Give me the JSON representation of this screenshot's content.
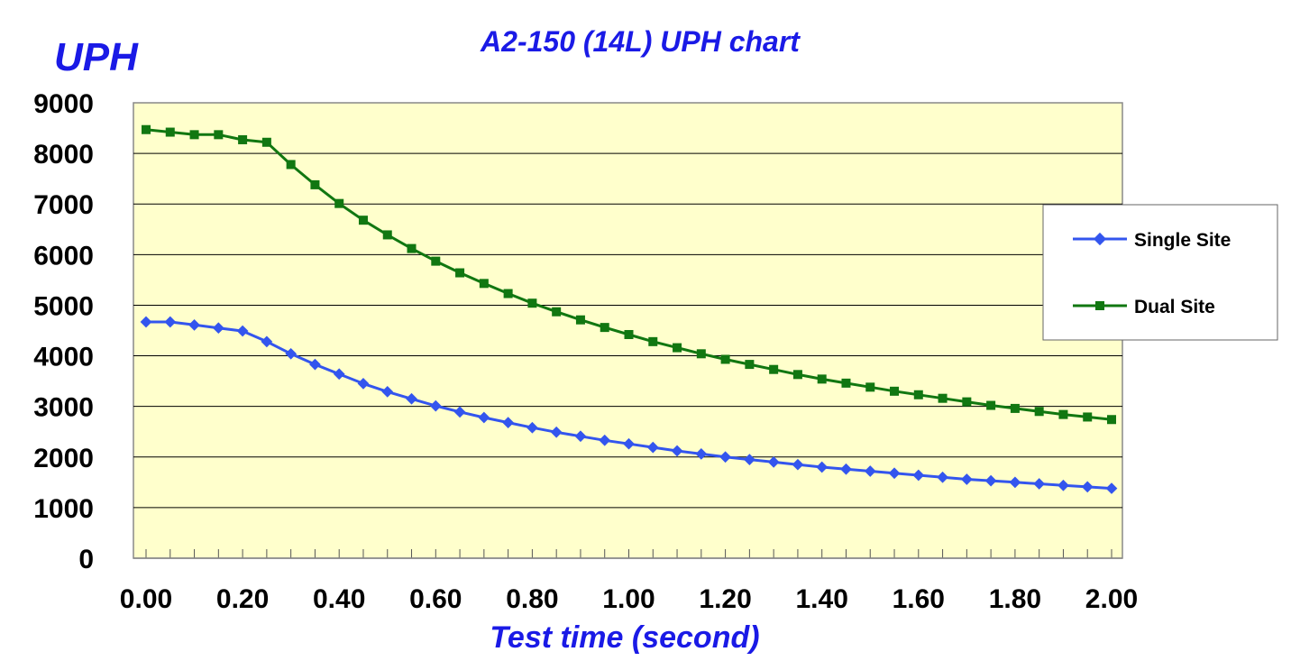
{
  "chart_data": {
    "type": "line",
    "title": "A2-150 (14L) UPH chart",
    "ylabel": "UPH",
    "xlabel": "Test time (second)",
    "ylim": [
      0,
      9000
    ],
    "xlim": [
      0,
      2.0
    ],
    "x": [
      0.0,
      0.05,
      0.1,
      0.15,
      0.2,
      0.25,
      0.3,
      0.35,
      0.4,
      0.45,
      0.5,
      0.55,
      0.6,
      0.65,
      0.7,
      0.75,
      0.8,
      0.85,
      0.9,
      0.95,
      1.0,
      1.05,
      1.1,
      1.15,
      1.2,
      1.25,
      1.3,
      1.35,
      1.4,
      1.45,
      1.5,
      1.55,
      1.6,
      1.65,
      1.7,
      1.75,
      1.8,
      1.85,
      1.9,
      1.95,
      2.0
    ],
    "y_ticks": [
      "0",
      "1000",
      "2000",
      "3000",
      "4000",
      "5000",
      "6000",
      "7000",
      "8000",
      "9000"
    ],
    "x_ticks": [
      "0.00",
      "0.20",
      "0.40",
      "0.60",
      "0.80",
      "1.00",
      "1.20",
      "1.40",
      "1.60",
      "1.80",
      "2.00"
    ],
    "grid": "horizontal",
    "legend_position": "right",
    "series": [
      {
        "name": "Single Site",
        "color": "#3355ee",
        "marker": "diamond",
        "values": [
          4670,
          4670,
          4610,
          4550,
          4490,
          4280,
          4040,
          3830,
          3640,
          3450,
          3290,
          3150,
          3010,
          2890,
          2780,
          2680,
          2580,
          2490,
          2410,
          2330,
          2260,
          2190,
          2120,
          2060,
          2000,
          1950,
          1900,
          1850,
          1800,
          1760,
          1720,
          1680,
          1640,
          1600,
          1560,
          1530,
          1500,
          1470,
          1440,
          1410,
          1380
        ]
      },
      {
        "name": "Dual Site",
        "color": "#117711",
        "marker": "square",
        "values": [
          8470,
          8420,
          8370,
          8370,
          8270,
          8220,
          7780,
          7380,
          7010,
          6680,
          6390,
          6120,
          5870,
          5640,
          5430,
          5230,
          5040,
          4870,
          4710,
          4560,
          4420,
          4280,
          4160,
          4040,
          3930,
          3830,
          3730,
          3630,
          3540,
          3460,
          3380,
          3300,
          3230,
          3160,
          3090,
          3020,
          2960,
          2900,
          2840,
          2790,
          2740
        ]
      }
    ]
  }
}
